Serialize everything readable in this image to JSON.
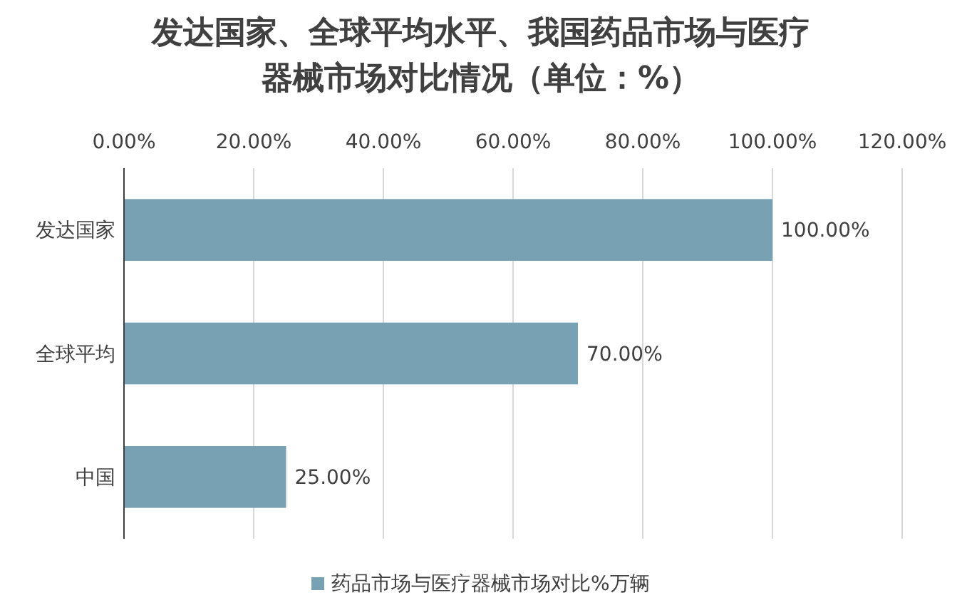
{
  "chart_data": {
    "type": "bar",
    "orientation": "horizontal",
    "title": "发达国家、全球平均水平、我国药品市场与医疗器械市场对比情况（单位：%）",
    "categories": [
      "发达国家",
      "全球平均",
      "中国"
    ],
    "series": [
      {
        "name": "药品市场与医疗器械市场对比%万辆",
        "color": "#78a1b4",
        "values": [
          100,
          70,
          25
        ],
        "value_labels": [
          "100.00%",
          "70.00%",
          "25.00%"
        ]
      }
    ],
    "xlim": [
      0,
      120
    ],
    "xticks": [
      {
        "value": 0,
        "label": "0.00%"
      },
      {
        "value": 20,
        "label": "20.00%"
      },
      {
        "value": 40,
        "label": "40.00%"
      },
      {
        "value": 60,
        "label": "60.00%"
      },
      {
        "value": 80,
        "label": "80.00%"
      },
      {
        "value": 100,
        "label": "100.00%"
      },
      {
        "value": 120,
        "label": "120.00%"
      }
    ],
    "grid": "x",
    "legend": "bottom"
  }
}
